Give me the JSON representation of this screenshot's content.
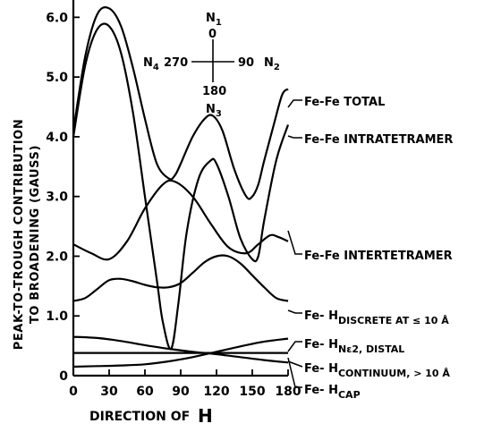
{
  "chart_data": {
    "type": "line",
    "xlabel": "DIRECTION OF",
    "xlabel_symbol": "H",
    "ylabel_line1": "PEAK-TO-TROUGH CONTRIBUTION",
    "ylabel_line2": "TO BROADENING (GAUSS)",
    "xlim": [
      0,
      180
    ],
    "ylim": [
      0,
      6.2
    ],
    "x_ticks": [
      0,
      30,
      60,
      90,
      120,
      150,
      180
    ],
    "y_ticks": [
      {
        "value": 0,
        "label": "0"
      },
      {
        "value": 1,
        "label": "1.0"
      },
      {
        "value": 2,
        "label": "2.0"
      },
      {
        "value": 3,
        "label": "3.0"
      },
      {
        "value": 4,
        "label": "4.0"
      },
      {
        "value": 5,
        "label": "5.0"
      },
      {
        "value": 6,
        "label": "6.0"
      }
    ],
    "compass": {
      "n1": "N",
      "n1_sub": "1",
      "n2": "N",
      "n2_sub": "2",
      "n3": "N",
      "n3_sub": "3",
      "n4": "N",
      "n4_sub": "4",
      "top_angle": "0",
      "right_angle": "90",
      "bottom_angle": "180",
      "left_angle": "270"
    },
    "series": [
      {
        "name": "Fe-Fe TOTAL",
        "x": [
          0,
          10,
          20,
          30,
          40,
          50,
          60,
          70,
          80,
          85,
          90,
          100,
          110,
          117,
          125,
          135,
          145,
          150,
          155,
          160,
          168,
          175,
          180
        ],
        "y": [
          4.1,
          5.35,
          6.05,
          6.15,
          5.85,
          5.15,
          4.3,
          3.55,
          3.3,
          3.35,
          3.55,
          4.0,
          4.3,
          4.35,
          4.1,
          3.45,
          3.0,
          3.0,
          3.2,
          3.6,
          4.2,
          4.7,
          4.8
        ],
        "label_parts": [
          {
            "t": "Fe-Fe TOTAL",
            "sub": false
          }
        ]
      },
      {
        "name": "Fe-Fe INTRATETRAMER",
        "x": [
          0,
          10,
          20,
          30,
          40,
          50,
          60,
          70,
          75,
          82,
          88,
          95,
          105,
          115,
          120,
          130,
          140,
          150,
          155,
          160,
          170,
          180
        ],
        "y": [
          4.0,
          5.2,
          5.8,
          5.85,
          5.4,
          4.4,
          3.0,
          1.6,
          0.9,
          0.45,
          1.2,
          2.4,
          3.3,
          3.6,
          3.55,
          3.0,
          2.3,
          1.95,
          2.0,
          2.6,
          3.6,
          4.2
        ],
        "label_parts": [
          {
            "t": "Fe-Fe INTRATETRAMER",
            "sub": false
          }
        ]
      },
      {
        "name": "Fe-Fe INTERTETRAMER",
        "x": [
          0,
          15,
          30,
          45,
          60,
          75,
          85,
          100,
          115,
          130,
          145,
          155,
          165,
          172,
          180
        ],
        "y": [
          2.2,
          2.05,
          1.95,
          2.25,
          2.8,
          3.2,
          3.25,
          3.0,
          2.55,
          2.15,
          2.05,
          2.2,
          2.35,
          2.32,
          2.25
        ],
        "label_parts": [
          {
            "t": "Fe-Fe INTERTETRAMER",
            "sub": false
          }
        ]
      },
      {
        "name": "Fe-H DISCRETE AT ≤ 10 Å",
        "x": [
          0,
          10,
          20,
          30,
          40,
          50,
          60,
          70,
          80,
          90,
          100,
          110,
          120,
          130,
          140,
          150,
          160,
          170,
          180
        ],
        "y": [
          1.25,
          1.3,
          1.45,
          1.6,
          1.62,
          1.58,
          1.52,
          1.48,
          1.48,
          1.55,
          1.72,
          1.9,
          2.0,
          2.0,
          1.88,
          1.68,
          1.48,
          1.3,
          1.25
        ],
        "label_parts": [
          {
            "t": "Fe- H",
            "sub": false
          },
          {
            "t": "DISCRETE AT ≤ 10 Å",
            "sub": true
          }
        ]
      },
      {
        "name": "Fe-H Nε2, DISTAL",
        "x": [
          0,
          20,
          40,
          60,
          80,
          100,
          120,
          140,
          160,
          180
        ],
        "y": [
          0.65,
          0.63,
          0.58,
          0.51,
          0.45,
          0.4,
          0.36,
          0.31,
          0.26,
          0.22
        ],
        "label_parts": [
          {
            "t": "Fe- H",
            "sub": false
          },
          {
            "t": "Nε2, DISTAL",
            "sub": true
          }
        ]
      },
      {
        "name": "Fe-H CONTINUUM, > 10 Å",
        "x": [
          0,
          180
        ],
        "y": [
          0.38,
          0.38
        ],
        "label_parts": [
          {
            "t": "Fe- H",
            "sub": false
          },
          {
            "t": "CONTINUUM, > 10 Å",
            "sub": true
          }
        ]
      },
      {
        "name": "Fe-H CAP",
        "x": [
          0,
          20,
          40,
          60,
          80,
          100,
          120,
          140,
          160,
          180
        ],
        "y": [
          0.15,
          0.16,
          0.17,
          0.19,
          0.24,
          0.31,
          0.4,
          0.49,
          0.57,
          0.62
        ],
        "label_parts": [
          {
            "t": "Fe- H",
            "sub": false
          },
          {
            "t": "CAP",
            "sub": true
          }
        ]
      }
    ]
  }
}
